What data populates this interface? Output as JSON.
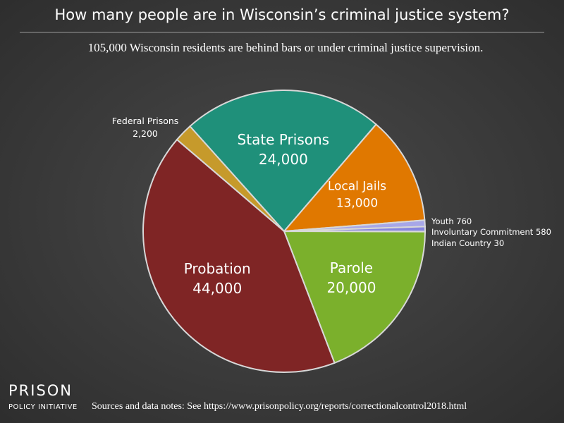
{
  "chart_data": {
    "type": "pie",
    "title": "How many people are in Wisconsin’s criminal justice system?",
    "subtitle": "105,000 Wisconsin residents are behind bars or under criminal justice supervision.",
    "categories": [
      "State Prisons",
      "Local Jails",
      "Youth",
      "Involuntary Commitment",
      "Indian Country",
      "Parole",
      "Probation",
      "Federal Prisons"
    ],
    "values": [
      24000,
      13000,
      760,
      580,
      30,
      20000,
      44000,
      2200
    ],
    "value_labels": [
      "24,000",
      "13,000",
      "760",
      "580",
      "30",
      "20,000",
      "44,000",
      "2,200"
    ],
    "colors": [
      "#1f907a",
      "#e07800",
      "#a7a7e8",
      "#8585e0",
      "#6868d8",
      "#7bb02c",
      "#7f2525",
      "#c69a2b"
    ],
    "source": "Sources and data notes: See https://www.prisonpolicy.org/reports/correctionalcontrol2018.html",
    "logo": [
      "PRISON",
      "POLICY INITIATIVE"
    ]
  }
}
